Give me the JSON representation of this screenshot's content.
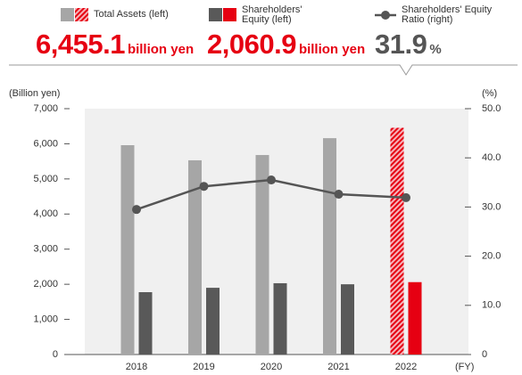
{
  "chart_data": {
    "type": "bar_line",
    "categories": [
      "2018",
      "2019",
      "2020",
      "2021",
      "2022"
    ],
    "series": [
      {
        "name": "Total Assets (left)",
        "color": "#a6a6a6",
        "highlight_color": "#e60012",
        "values": [
          5960,
          5530,
          5680,
          6160,
          6455.1
        ]
      },
      {
        "name": "Shareholders' Equity (left)",
        "color": "#595959",
        "highlight_color": "#e60012",
        "values": [
          1775,
          1900,
          2030,
          2000,
          2060.9
        ]
      },
      {
        "name": "Shareholders' Equity Ratio (right)",
        "color": "#555555",
        "axis": "y2",
        "values": [
          29.5,
          34.2,
          35.5,
          32.6,
          31.9
        ]
      }
    ],
    "headline": [
      {
        "value": "6,455.1",
        "unit": "billion yen",
        "color": "#e60012"
      },
      {
        "value": "2,060.9",
        "unit": "billion yen",
        "color": "#e60012"
      },
      {
        "value": "31.9",
        "unit": "%",
        "color": "#555555"
      }
    ],
    "ylabel": "(Billion yen)",
    "y2label": "(%)",
    "xlabel": "(FY)",
    "ylim": [
      0,
      7000
    ],
    "yticks": [
      0,
      {
        "value": 1000,
        "label": "1,000"
      },
      {
        "value": 2000,
        "label": "2,000"
      },
      {
        "value": 3000,
        "label": "3,000"
      },
      {
        "value": 4000,
        "label": "4,000"
      },
      {
        "value": 5000,
        "label": "5,000"
      },
      {
        "value": 6000,
        "label": "6,000"
      },
      {
        "value": 7000,
        "label": "7,000"
      }
    ],
    "y2lim": [
      0,
      50
    ],
    "y2ticks": [
      0,
      {
        "value": 10,
        "label": "10.0"
      },
      {
        "value": 20,
        "label": "20.0"
      },
      {
        "value": 30,
        "label": "30.0"
      },
      {
        "value": 40,
        "label": "40.0"
      },
      {
        "value": 50,
        "label": "50.0"
      }
    ],
    "plot_background": "#f0f0f0"
  }
}
